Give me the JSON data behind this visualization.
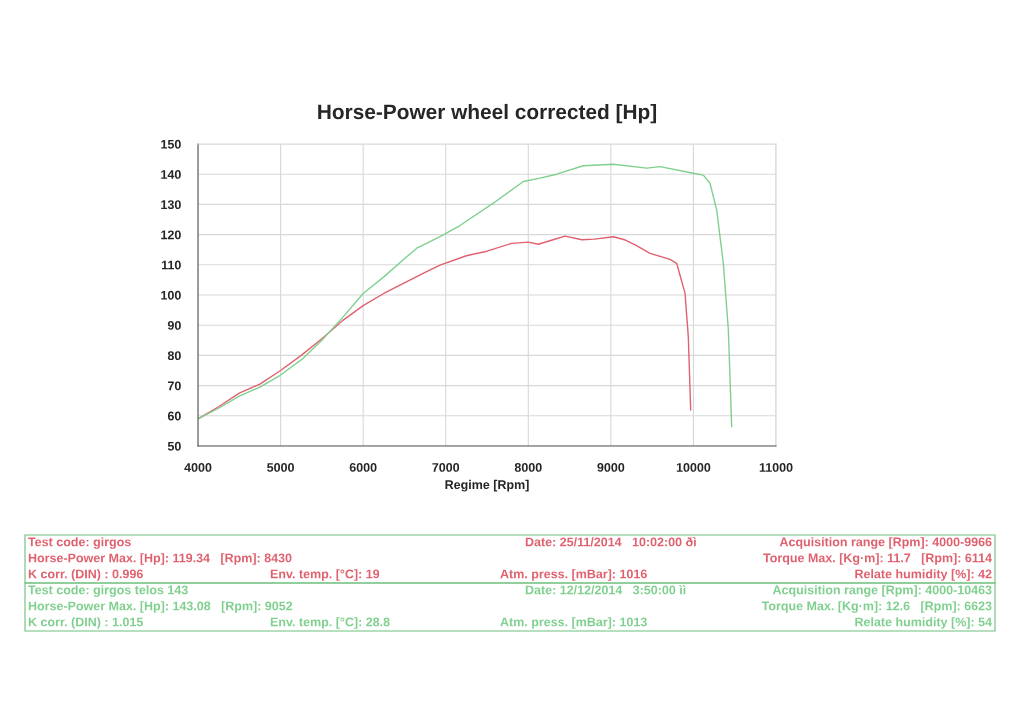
{
  "chart_data": {
    "type": "line",
    "title": "Horse-Power wheel corrected [Hp]",
    "xlabel": "Regime [Rpm]",
    "xlim": [
      4000,
      11000
    ],
    "xticks": [
      4000,
      5000,
      6000,
      7000,
      8000,
      9000,
      10000,
      11000
    ],
    "ylim": [
      50,
      150
    ],
    "yticks": [
      50,
      60,
      70,
      80,
      90,
      100,
      110,
      120,
      130,
      140,
      150
    ],
    "grid": true,
    "legend": false,
    "marker": "none",
    "line_style": "solid",
    "series": [
      {
        "color": "#e0606e",
        "x": [
          4000,
          4250,
          4500,
          4750,
          5000,
          5250,
          5500,
          5750,
          6000,
          6250,
          6500,
          6750,
          6931,
          7250,
          7500,
          7799,
          8000,
          8122,
          8300,
          8445,
          8650,
          8800,
          9030,
          9175,
          9300,
          9474,
          9716,
          9797,
          9898,
          9938,
          9967
        ],
        "values": [
          59,
          63,
          67.5,
          70.5,
          75,
          80,
          85.5,
          91.5,
          96.5,
          100.5,
          104,
          107.5,
          109.9,
          113,
          114.5,
          117.1,
          117.5,
          116.8,
          118.3,
          119.5,
          118.3,
          118.5,
          119.3,
          118.2,
          116.5,
          113.8,
          111.8,
          110.5,
          100.6,
          86.2,
          61.9
        ]
      },
      {
        "color": "#7fd08e",
        "x": [
          4000,
          4250,
          4500,
          4750,
          5000,
          5250,
          5500,
          5750,
          6000,
          6250,
          6500,
          6650,
          6931,
          7173,
          7576,
          7940,
          8142,
          8344,
          8666,
          9030,
          9434,
          9595,
          9999,
          10120,
          10201,
          10282,
          10362,
          10423,
          10463
        ],
        "values": [
          59,
          62.5,
          66.5,
          69.5,
          73.5,
          78.5,
          85,
          92.5,
          100.5,
          106,
          112,
          115.5,
          119.3,
          123,
          130.4,
          137.6,
          138.7,
          140,
          142.8,
          143.3,
          142,
          142.5,
          140.3,
          139.7,
          137,
          128.1,
          110.5,
          88.4,
          56.4
        ]
      }
    ],
    "annotations": [
      "Test code: girgos",
      "Horse-Power Max. [Hp]: 119.34   [Rpm]: 8430",
      "K corr. (DIN) : 0.996",
      "Env. temp. [°C]: 19",
      "Date: 25/11/2014   10:02:00 ðì",
      "Atm. press. [mBar]: 1016",
      "Acquisition range [Rpm]: 4000-9966",
      "Torque Max. [Kg·m]: 11.7   [Rpm]: 6114",
      "Relate humidity [%]: 42",
      "Test code: girgos telos 143",
      "Horse-Power Max. [Hp]: 143.08   [Rpm]: 9052",
      "K corr. (DIN) : 1.015",
      "Env. temp. [°C]: 28.8",
      "Date: 12/12/2014   3:50:00 ìì",
      "Atm. press. [mBar]: 1013",
      "Acquisition range [Rpm]: 4000-10463",
      "Torque Max. [Kg·m]: 12.6   [Rpm]: 6623",
      "Relate humidity [%]: 54"
    ]
  }
}
